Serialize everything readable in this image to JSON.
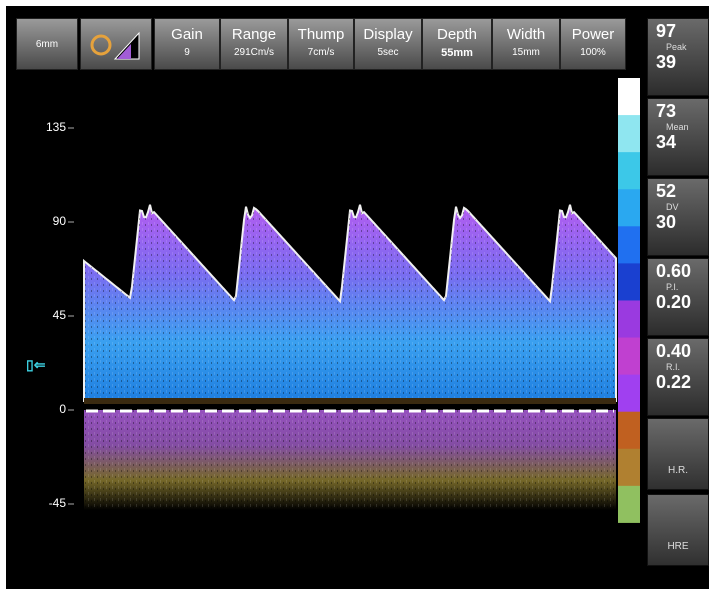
{
  "toolbar": {
    "mode": "6mm",
    "controls": [
      {
        "label": "Gain",
        "value": "9"
      },
      {
        "label": "Range",
        "value": "291Cm/s"
      },
      {
        "label": "Thump",
        "value": "7cm/s"
      },
      {
        "label": "Display",
        "value": "5sec"
      },
      {
        "label": "Depth",
        "value": "55mm"
      },
      {
        "label": "Width",
        "value": "15mm"
      },
      {
        "label": "Power",
        "value": "100%"
      }
    ]
  },
  "scale": {
    "ticks": [
      135,
      90,
      45,
      0,
      -45
    ]
  },
  "measurements": [
    {
      "top": "97",
      "label": "Peak",
      "bottom": "39"
    },
    {
      "top": "73",
      "label": "Mean",
      "bottom": "34"
    },
    {
      "top": "52",
      "label": "DV",
      "bottom": "30"
    },
    {
      "top": "0.60",
      "label": "P.I.",
      "bottom": "0.20"
    },
    {
      "top": "0.40",
      "label": "R.I.",
      "bottom": "0.22"
    }
  ],
  "buttons": [
    "H.R.",
    "HRE"
  ]
}
